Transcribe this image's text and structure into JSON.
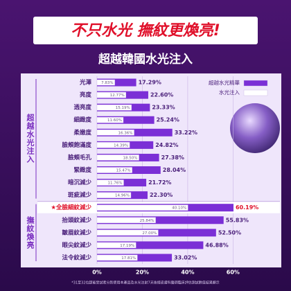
{
  "chart_data": {
    "type": "hbar",
    "title": "不只水光 撫紋更煥亮!",
    "subtitle": "超越韓國水光注入",
    "note": "*31至32位超能受試者分別使用本產品及水光注射7天後經皮膚科醫師臨床評估測試數值結果顯示",
    "group_labels": [
      "超越水光注入",
      "撫紋煥亮"
    ],
    "categories": [
      "光澤",
      "亮度",
      "透亮度",
      "細緻度",
      "柔嫩度",
      "臉頰飽滿度",
      "臉頰毛孔",
      "緊緻度",
      "暗沉減少",
      "斑疵減少",
      "★全臉細紋減少",
      "抬頭紋減少",
      "皺眉紋減少",
      "眼尖紋減少",
      "法令紋減少"
    ],
    "series": [
      {
        "name": "超越水光精華",
        "color": "#7b2fd6",
        "values": [
          17.29,
          22.6,
          23.33,
          25.24,
          33.22,
          24.82,
          27.38,
          28.04,
          21.72,
          22.3,
          60.19,
          55.83,
          52.5,
          46.88,
          33.02
        ],
        "value_labels": [
          "17.29%",
          "22.60%",
          "23.33%",
          "25.24%",
          "33.22%",
          "24.82%",
          "27.38%",
          "28.04%",
          "21.72%",
          "22.30%",
          "60.19%",
          "55.83%",
          "52.50%",
          "46.88%",
          "33.02%"
        ]
      },
      {
        "name": "水光注入",
        "color": "#ffffff",
        "values": [
          7.83,
          12.77,
          15.19,
          11.6,
          16.36,
          14.39,
          18.5,
          15.47,
          11.76,
          14.96,
          40.1,
          25.84,
          27.0,
          17.19,
          17.81
        ],
        "value_labels": [
          "7.83%",
          "12.77%",
          "15.19%",
          "11.60%",
          "16.36%",
          "14.39%",
          "18.50%",
          "15.47%",
          "11.76%",
          "14.96%",
          "40.10%",
          "25.84%",
          "27.00%",
          "17.19%",
          "17.81%"
        ]
      }
    ],
    "xlim": [
      0,
      77
    ],
    "xticks": [
      {
        "value": 0,
        "label": "0%"
      },
      {
        "value": 20,
        "label": "20%"
      },
      {
        "value": 40,
        "label": "40%"
      },
      {
        "value": 60,
        "label": "60%"
      }
    ],
    "grid": true,
    "highlight_index": 10
  }
}
